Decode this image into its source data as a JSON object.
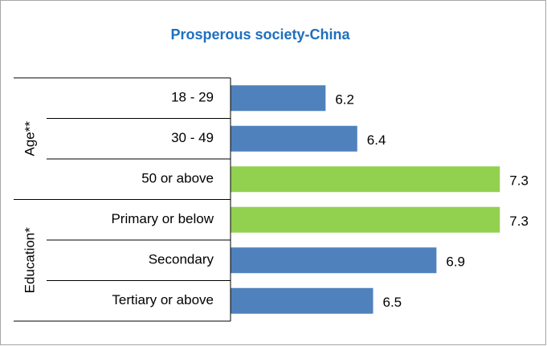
{
  "chart_data": {
    "type": "bar",
    "title": "Prosperous society-China",
    "groups": [
      {
        "name": "Age**",
        "categories": [
          "18 - 29",
          "30 - 49",
          "50 or above"
        ],
        "values": [
          6.2,
          6.4,
          7.3
        ],
        "colors": [
          "#4f81bd",
          "#4f81bd",
          "#92d050"
        ]
      },
      {
        "name": "Education*",
        "categories": [
          "Primary or below",
          "Secondary",
          "Tertiary or above"
        ],
        "values": [
          7.3,
          6.9,
          6.5
        ],
        "colors": [
          "#92d050",
          "#4f81bd",
          "#4f81bd"
        ]
      }
    ],
    "xlim": [
      5.6,
      7.4
    ]
  }
}
